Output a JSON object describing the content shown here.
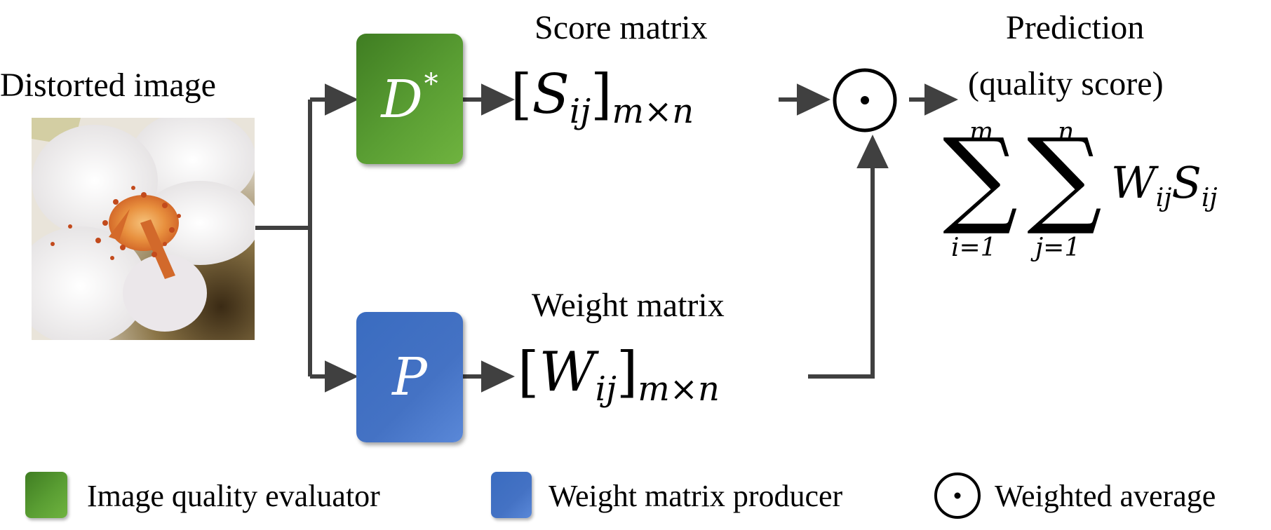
{
  "input": {
    "label": "Distorted image"
  },
  "evaluator_box": {
    "symbol": "D",
    "superscript": "*"
  },
  "producer_box": {
    "symbol": "P"
  },
  "score_matrix": {
    "title": "Score matrix",
    "symbol": "S",
    "sub": "ij",
    "dims": "m×n"
  },
  "weight_matrix": {
    "title": "Weight matrix",
    "symbol": "W",
    "sub": "ij",
    "dims": "m×n"
  },
  "operator": {
    "glyph": "⊙"
  },
  "prediction": {
    "title_line1": "Prediction",
    "title_line2": "(quality score)",
    "sum1_upper": "m",
    "sum1_lower": "i=1",
    "sum2_upper": "n",
    "sum2_lower": "j=1",
    "term_w": "W",
    "term_w_sub": "ij",
    "term_s": "S",
    "term_s_sub": "ij"
  },
  "legend": [
    {
      "label": "Image quality evaluator",
      "color": "#5a9e33"
    },
    {
      "label": "Weight matrix producer",
      "color": "#4472c4"
    },
    {
      "label": "Weighted average",
      "icon": "odot-icon"
    }
  ],
  "colors": {
    "arrow": "#404040",
    "green": "#5a9e33",
    "blue": "#4472c4"
  }
}
